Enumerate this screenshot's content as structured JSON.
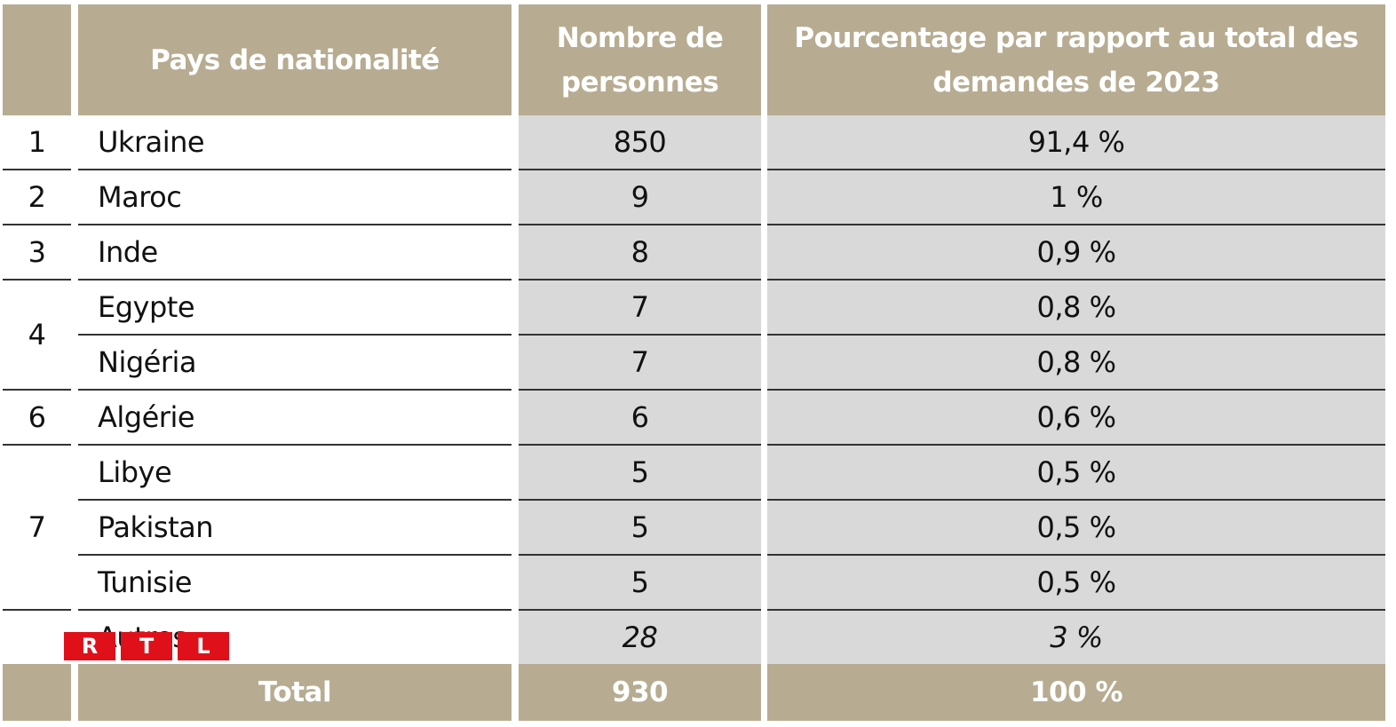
{
  "header": {
    "country": [
      "Pays de nationalité"
    ],
    "count": [
      "Nombre de",
      "personnes"
    ],
    "percent": [
      "Pourcentage par rapport au total des",
      "demandes de 2023"
    ]
  },
  "groups": [
    {
      "rank": "1",
      "items": [
        {
          "country": "Ukraine",
          "count": "850",
          "percent": "91,4 %"
        }
      ]
    },
    {
      "rank": "2",
      "items": [
        {
          "country": "Maroc",
          "count": "9",
          "percent": "1 %"
        }
      ]
    },
    {
      "rank": "3",
      "items": [
        {
          "country": "Inde",
          "count": "8",
          "percent": "0,9 %"
        }
      ]
    },
    {
      "rank": "4",
      "items": [
        {
          "country": "Egypte",
          "count": "7",
          "percent": "0,8 %"
        },
        {
          "country": "Nigéria",
          "count": "7",
          "percent": "0,8 %"
        }
      ]
    },
    {
      "rank": "6",
      "items": [
        {
          "country": "Algérie",
          "count": "6",
          "percent": "0,6 %"
        }
      ]
    },
    {
      "rank": "7",
      "items": [
        {
          "country": "Libye",
          "count": "5",
          "percent": "0,5 %"
        },
        {
          "country": "Pakistan",
          "count": "5",
          "percent": "0,5 %"
        },
        {
          "country": "Tunisie",
          "count": "5",
          "percent": "0,5 %"
        }
      ]
    },
    {
      "items": [
        {
          "country": "Autres",
          "count": "28",
          "percent": "3 %"
        }
      ]
    }
  ],
  "total": {
    "label": "Total",
    "count": "930",
    "percent": "100 %"
  },
  "logo": [
    "R",
    "T",
    "L"
  ]
}
